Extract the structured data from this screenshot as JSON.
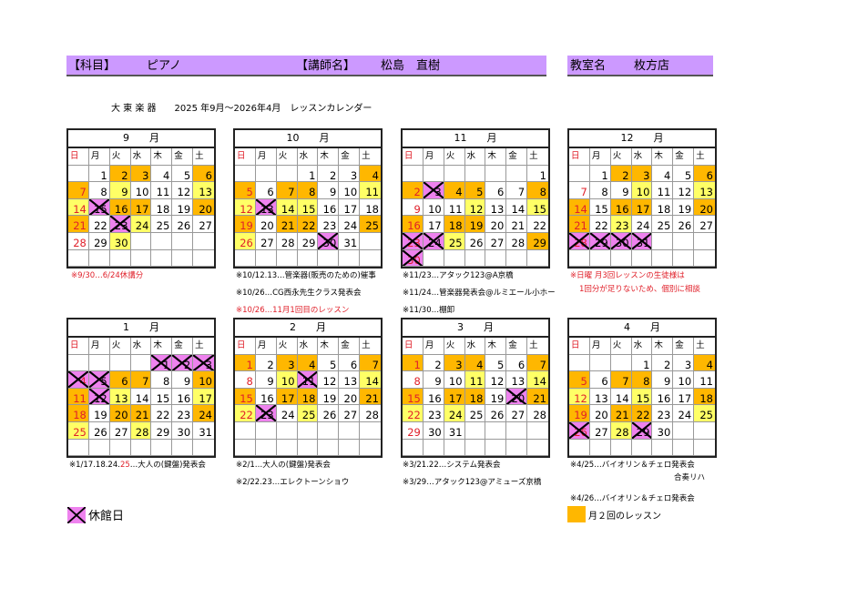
{
  "header": {
    "subject_label": "【科目】",
    "subject": "ピアノ",
    "teacher_label": "【講師名】",
    "teacher": "松島　直樹",
    "room_label": "教室名",
    "room": "枚方店"
  },
  "title": "大 東 楽 器　　2025 年9月～2026年4月　レッスンカレンダー",
  "weekdays": [
    "日",
    "月",
    "火",
    "水",
    "木",
    "金",
    "土"
  ],
  "colors": {
    "two_per_month": "#ffb700",
    "highlight": "#ffff66",
    "closed": "#ee82ee",
    "sunday": "#e0202a",
    "header_bar": "#cc99ff"
  },
  "months": [
    {
      "label": "9　　月",
      "start": 1,
      "days": 30,
      "orange": [
        2,
        3,
        6,
        7,
        16,
        17,
        20,
        21
      ],
      "yellow": [
        9,
        13,
        14,
        24,
        30
      ],
      "closed": [
        15,
        23
      ]
    },
    {
      "label": "10　　月",
      "start": 3,
      "days": 31,
      "orange": [
        4,
        5,
        7,
        8,
        19,
        21,
        22,
        25
      ],
      "yellow": [
        11,
        12,
        14,
        15,
        26
      ],
      "closed": [
        13,
        30
      ]
    },
    {
      "label": "11　　月",
      "start": 6,
      "days": 30,
      "orange": [
        2,
        4,
        5,
        8,
        16,
        18,
        19,
        29
      ],
      "yellow": [
        12,
        15,
        25
      ],
      "closed": [
        3,
        23,
        24,
        30
      ]
    },
    {
      "label": "12　　月",
      "start": 1,
      "days": 31,
      "orange": [
        2,
        3,
        6,
        14,
        16,
        17,
        20,
        21
      ],
      "yellow": [
        10,
        13,
        23
      ],
      "closed": [
        28,
        29,
        30,
        31
      ]
    },
    {
      "label": "1　　月",
      "start": 4,
      "days": 31,
      "orange": [
        6,
        7,
        10,
        11,
        18,
        20,
        21,
        24
      ],
      "yellow": [
        13,
        17,
        25,
        28
      ],
      "closed": [
        1,
        2,
        3,
        4,
        5,
        12
      ]
    },
    {
      "label": "2　　月",
      "start": 0,
      "days": 28,
      "orange": [
        1,
        3,
        4,
        7,
        15,
        17,
        18,
        21
      ],
      "yellow": [
        10,
        14,
        22,
        25
      ],
      "closed": [
        11,
        23
      ]
    },
    {
      "label": "3　　月",
      "start": 0,
      "days": 31,
      "orange": [
        1,
        3,
        4,
        7,
        15,
        17,
        18,
        21
      ],
      "yellow": [
        11,
        14,
        22,
        24
      ],
      "closed": [
        20
      ]
    },
    {
      "label": "4　　月",
      "start": 3,
      "days": 30,
      "orange": [
        4,
        5,
        7,
        8,
        18,
        19,
        21,
        22
      ],
      "yellow": [
        12,
        15,
        25,
        28
      ],
      "closed": [
        26,
        29
      ]
    }
  ],
  "notes": {
    "sep": [
      "※9/30…6/24休講分"
    ],
    "oct": [
      "※10/12.13…管楽器(販売のための)催事",
      "※10/26…CG西永先生クラス発表会",
      "※10/26…11月1回目のレッスン"
    ],
    "nov": [
      "※11/23…アタック123@A京橋",
      "※11/24…管楽器発表会@ルミエール小ホー",
      "※11/30…棚卸"
    ],
    "dec": [
      "※日曜 月3回レッスンの生徒様は",
      "1回分が足りないため、個別に相談"
    ],
    "jan": {
      "pre": "※1/17.18.24.",
      "red": "25",
      "post": "…大人の(鍵盤)発表会"
    },
    "feb": [
      "※2/1…大人の(鍵盤)発表会",
      "※2/22.23…エレクトーンショウ"
    ],
    "mar": [
      "※3/21.22…システム発表会",
      "※3/29…アタック123@アミューズ京橋"
    ],
    "apr": [
      "※4/25…バイオリン＆チェロ発表会",
      "合奏リハ",
      "※4/26…バイオリン＆チェロ発表会"
    ]
  },
  "legend": {
    "closed": "休館日",
    "two_per_month": "月２回のレッスン"
  }
}
